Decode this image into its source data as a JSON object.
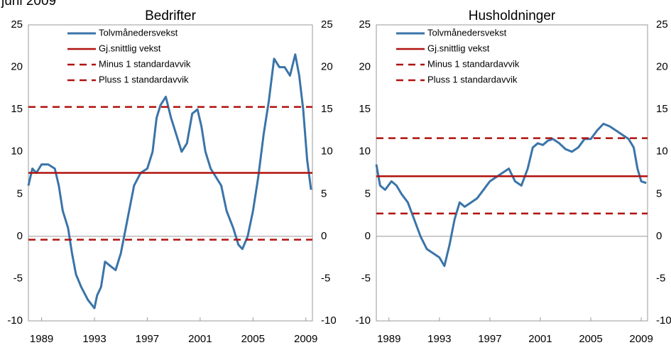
{
  "page_title": "juni 2009",
  "chart_data": [
    {
      "type": "line",
      "title": "Bedrifter",
      "xlim": [
        1988,
        2009.5
      ],
      "xticks": [
        1989,
        1993,
        1997,
        2001,
        2005,
        2009
      ],
      "ylim": [
        -10,
        25
      ],
      "yticks": [
        -10,
        -5,
        0,
        5,
        10,
        15,
        20,
        25
      ],
      "legend": "upper left",
      "series": [
        {
          "name": "Tolvmånedersvekst",
          "color": "#3a74a8",
          "style": "line",
          "x": [
            1988.0,
            1988.3,
            1988.6,
            1989.0,
            1989.5,
            1990.0,
            1990.3,
            1990.6,
            1991.0,
            1991.3,
            1991.6,
            1992.0,
            1992.5,
            1993.0,
            1993.2,
            1993.5,
            1993.8,
            1994.2,
            1994.6,
            1995.0,
            1995.5,
            1996.0,
            1996.5,
            1997.0,
            1997.4,
            1997.7,
            1998.0,
            1998.4,
            1998.8,
            1999.2,
            1999.6,
            2000.0,
            2000.4,
            2000.8,
            2001.1,
            2001.4,
            2001.8,
            2002.2,
            2002.6,
            2003.0,
            2003.5,
            2003.9,
            2004.2,
            2004.6,
            2005.0,
            2005.4,
            2005.8,
            2006.2,
            2006.6,
            2007.0,
            2007.4,
            2007.8,
            2008.2,
            2008.5,
            2008.8,
            2009.1,
            2009.4
          ],
          "values": [
            6,
            8,
            7.5,
            8.5,
            8.5,
            8,
            6,
            3,
            1,
            -2,
            -4.5,
            -6,
            -7.5,
            -8.5,
            -7,
            -6,
            -3,
            -3.5,
            -4,
            -2,
            2,
            6,
            7.5,
            8,
            10,
            14,
            15.5,
            16.5,
            14,
            12,
            10,
            11,
            14.5,
            15,
            13,
            10,
            8,
            7,
            6,
            3,
            1,
            -1,
            -1.5,
            0,
            3,
            7,
            12,
            16,
            21,
            20,
            20,
            19,
            21.5,
            19,
            15,
            9,
            5.5
          ]
        },
        {
          "name": "Gj.snittlig vekst",
          "color": "#b0120f",
          "style": "hline",
          "dash": false,
          "value": 7.5
        },
        {
          "name": "Minus 1 standardavvik",
          "color": "#b0120f",
          "style": "hline",
          "dash": true,
          "value": -0.4
        },
        {
          "name": "Pluss 1 standardavvik",
          "color": "#b0120f",
          "style": "hline",
          "dash": true,
          "value": 15.3
        }
      ]
    },
    {
      "type": "line",
      "title": "Husholdninger",
      "xlim": [
        1988,
        2009.5
      ],
      "xticks": [
        1989,
        1993,
        1997,
        2001,
        2005,
        2009
      ],
      "ylim": [
        -10,
        25
      ],
      "yticks": [
        -10,
        -5,
        0,
        5,
        10,
        15,
        20,
        25
      ],
      "legend": "upper left",
      "series": [
        {
          "name": "Tolvmånedersvekst",
          "color": "#3a74a8",
          "style": "line",
          "x": [
            1988.0,
            1988.3,
            1988.7,
            1989.2,
            1989.6,
            1990.0,
            1990.5,
            1991.0,
            1991.5,
            1992.0,
            1992.5,
            1993.0,
            1993.4,
            1993.8,
            1994.2,
            1994.6,
            1995.0,
            1995.5,
            1996.0,
            1996.5,
            1997.0,
            1997.5,
            1998.0,
            1998.5,
            1999.0,
            1999.5,
            2000.0,
            2000.4,
            2000.8,
            2001.2,
            2001.6,
            2002.0,
            2002.5,
            2003.0,
            2003.5,
            2004.0,
            2004.5,
            2005.0,
            2005.5,
            2006.0,
            2006.5,
            2007.0,
            2007.5,
            2008.0,
            2008.4,
            2008.7,
            2009.0,
            2009.4
          ],
          "values": [
            8.5,
            6,
            5.5,
            6.5,
            6,
            5,
            4,
            2,
            0,
            -1.5,
            -2,
            -2.5,
            -3.5,
            -1,
            2,
            4,
            3.5,
            4,
            4.5,
            5.5,
            6.5,
            7,
            7.5,
            8,
            6.5,
            6,
            8,
            10.5,
            11,
            10.8,
            11.3,
            11.5,
            11,
            10.3,
            10,
            10.5,
            11.5,
            11.5,
            12.5,
            13.3,
            13,
            12.5,
            12,
            11.5,
            10.5,
            8,
            6.5,
            6.3
          ]
        },
        {
          "name": "Gj.snittlig vekst",
          "color": "#b0120f",
          "style": "hline",
          "dash": false,
          "value": 7.1
        },
        {
          "name": "Minus 1 standardavvik",
          "color": "#b0120f",
          "style": "hline",
          "dash": true,
          "value": 2.7
        },
        {
          "name": "Pluss 1 standardavvik",
          "color": "#b0120f",
          "style": "hline",
          "dash": true,
          "value": 11.6
        }
      ]
    }
  ]
}
